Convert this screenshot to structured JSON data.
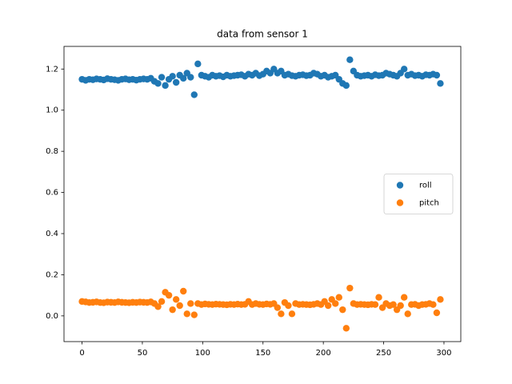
{
  "chart_data": {
    "type": "scatter",
    "title": "data from sensor 1",
    "x": [
      0,
      3,
      6,
      9,
      12,
      15,
      18,
      21,
      24,
      27,
      30,
      33,
      36,
      39,
      42,
      45,
      48,
      51,
      54,
      57,
      60,
      63,
      66,
      69,
      72,
      75,
      78,
      81,
      84,
      87,
      90,
      93,
      96,
      99,
      102,
      105,
      108,
      111,
      114,
      117,
      120,
      123,
      126,
      129,
      132,
      135,
      138,
      141,
      144,
      147,
      150,
      153,
      156,
      159,
      162,
      165,
      168,
      171,
      174,
      177,
      180,
      183,
      186,
      189,
      192,
      195,
      198,
      201,
      204,
      207,
      210,
      213,
      216,
      219,
      222,
      225,
      228,
      231,
      234,
      237,
      240,
      243,
      246,
      249,
      252,
      255,
      258,
      261,
      264,
      267,
      270,
      273,
      276,
      279,
      282,
      285,
      288,
      291,
      294,
      297
    ],
    "series": [
      {
        "name": "roll",
        "color": "#1f77b4",
        "values": [
          1.15,
          1.145,
          1.15,
          1.148,
          1.152,
          1.15,
          1.147,
          1.153,
          1.15,
          1.148,
          1.145,
          1.15,
          1.152,
          1.148,
          1.15,
          1.146,
          1.15,
          1.152,
          1.15,
          1.155,
          1.14,
          1.13,
          1.16,
          1.12,
          1.15,
          1.165,
          1.135,
          1.17,
          1.155,
          1.18,
          1.16,
          1.075,
          1.225,
          1.17,
          1.165,
          1.16,
          1.17,
          1.165,
          1.168,
          1.162,
          1.17,
          1.165,
          1.168,
          1.17,
          1.172,
          1.165,
          1.175,
          1.17,
          1.18,
          1.168,
          1.175,
          1.19,
          1.18,
          1.2,
          1.18,
          1.19,
          1.17,
          1.175,
          1.168,
          1.165,
          1.17,
          1.172,
          1.168,
          1.17,
          1.18,
          1.175,
          1.165,
          1.17,
          1.16,
          1.165,
          1.17,
          1.15,
          1.13,
          1.12,
          1.245,
          1.19,
          1.17,
          1.165,
          1.168,
          1.17,
          1.165,
          1.172,
          1.168,
          1.17,
          1.18,
          1.175,
          1.17,
          1.165,
          1.18,
          1.2,
          1.17,
          1.175,
          1.168,
          1.17,
          1.165,
          1.172,
          1.17,
          1.175,
          1.17,
          1.13
        ]
      },
      {
        "name": "pitch",
        "color": "#ff7f0e",
        "values": [
          0.07,
          0.068,
          0.065,
          0.066,
          0.068,
          0.065,
          0.064,
          0.067,
          0.066,
          0.065,
          0.068,
          0.066,
          0.065,
          0.064,
          0.066,
          0.065,
          0.067,
          0.066,
          0.065,
          0.068,
          0.06,
          0.045,
          0.07,
          0.115,
          0.1,
          0.03,
          0.08,
          0.05,
          0.12,
          0.01,
          0.06,
          0.005,
          0.06,
          0.055,
          0.058,
          0.056,
          0.055,
          0.057,
          0.056,
          0.055,
          0.054,
          0.056,
          0.055,
          0.057,
          0.055,
          0.056,
          0.07,
          0.055,
          0.06,
          0.056,
          0.055,
          0.058,
          0.056,
          0.06,
          0.04,
          0.01,
          0.065,
          0.05,
          0.01,
          0.06,
          0.055,
          0.056,
          0.055,
          0.054,
          0.056,
          0.06,
          0.055,
          0.07,
          0.05,
          0.08,
          0.06,
          0.09,
          0.03,
          -0.06,
          0.135,
          0.06,
          0.055,
          0.056,
          0.055,
          0.054,
          0.056,
          0.055,
          0.09,
          0.04,
          0.06,
          0.05,
          0.055,
          0.03,
          0.05,
          0.09,
          0.01,
          0.055,
          0.056,
          0.05,
          0.055,
          0.056,
          0.06,
          0.055,
          0.015,
          0.08
        ]
      }
    ],
    "xlim": [
      -14.95,
      313.95
    ],
    "xticks": [
      0,
      50,
      100,
      150,
      200,
      250,
      300
    ],
    "ylim": [
      -0.125,
      1.31
    ],
    "yticks": [
      {
        "value": 0,
        "label": "0.0"
      },
      {
        "value": 0.2,
        "label": "0.2"
      },
      {
        "value": 0.4,
        "label": "0.4"
      },
      {
        "value": 0.6,
        "label": "0.6"
      },
      {
        "value": 0.8,
        "label": "0.8"
      },
      {
        "value": 1.0,
        "label": "1.0"
      },
      {
        "value": 1.2,
        "label": "1.2"
      }
    ],
    "legend": "center right"
  }
}
